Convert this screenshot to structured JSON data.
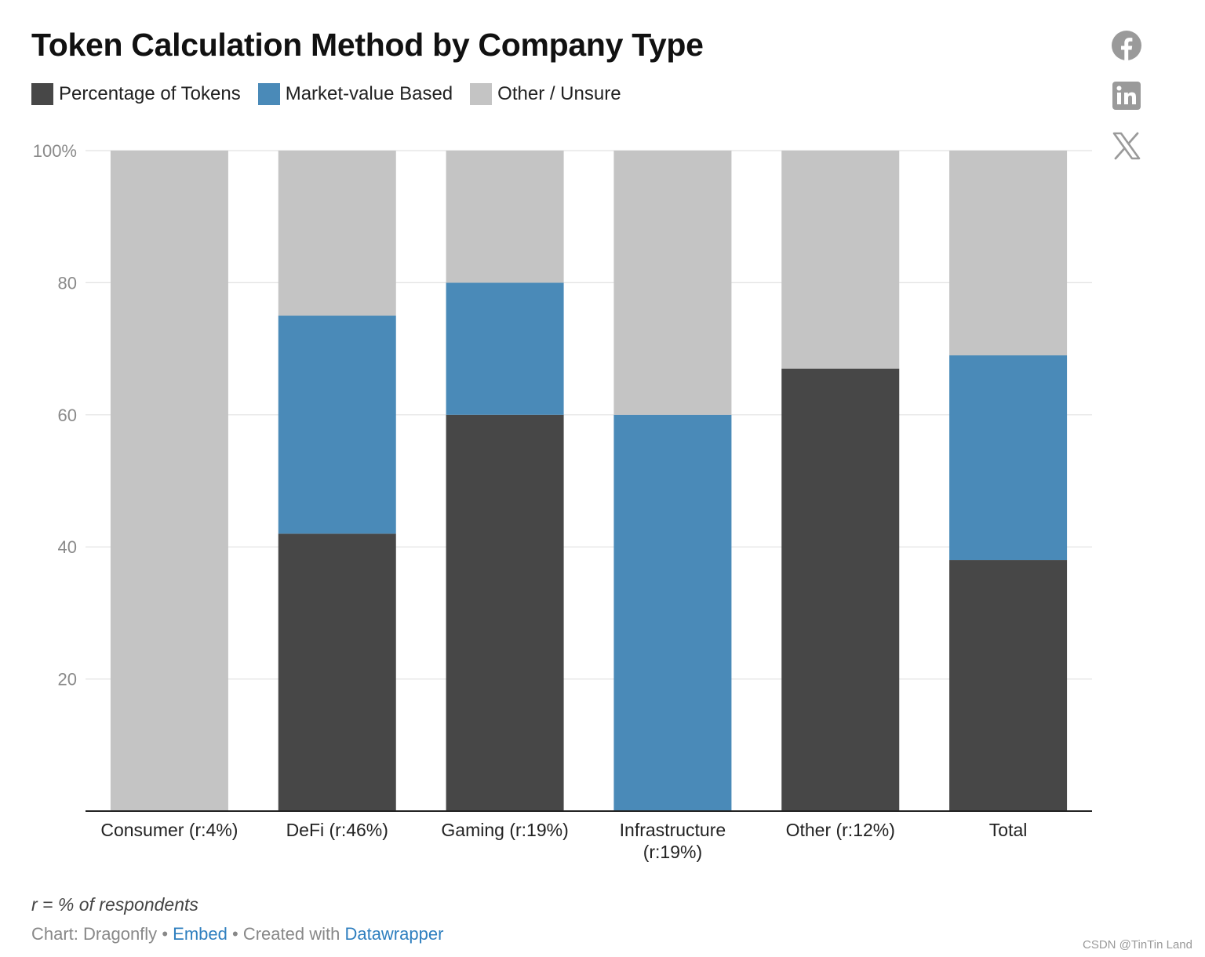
{
  "title": "Token Calculation Method by Company Type",
  "legend": [
    {
      "label": "Percentage of Tokens",
      "color": "#474747"
    },
    {
      "label": "Market-value Based",
      "color": "#4a8ab8"
    },
    {
      "label": "Other / Unsure",
      "color": "#c4c4c4"
    }
  ],
  "share": {
    "icons": [
      "facebook-icon",
      "linkedin-icon",
      "x-icon"
    ]
  },
  "chart_data": {
    "type": "bar",
    "stacked": true,
    "categories": [
      [
        "Consumer (r:4%)"
      ],
      [
        "DeFi (r:46%)"
      ],
      [
        "Gaming (r:19%)"
      ],
      [
        "Infrastructure",
        "(r:19%)"
      ],
      [
        "Other (r:12%)"
      ],
      [
        "Total"
      ]
    ],
    "series": [
      {
        "name": "Percentage of Tokens",
        "color": "#474747",
        "values": [
          0,
          42,
          60,
          0,
          67,
          38
        ]
      },
      {
        "name": "Market-value Based",
        "color": "#4a8ab8",
        "values": [
          0,
          33,
          20,
          60,
          0,
          31
        ]
      },
      {
        "name": "Other / Unsure",
        "color": "#c4c4c4",
        "values": [
          100,
          25,
          20,
          40,
          33,
          31
        ]
      }
    ],
    "ylim": [
      0,
      100
    ],
    "yticks": [
      20,
      40,
      60,
      80,
      100
    ],
    "ytick_labels": [
      "20",
      "40",
      "60",
      "80",
      "100%"
    ],
    "grid": true,
    "legend_position": "top-left"
  },
  "footer": {
    "note": "r = % of respondents",
    "credit_prefix": "Chart: Dragonfly",
    "separator": "•",
    "embed_link": "Embed",
    "created_with": "Created with",
    "datawrapper_link": "Datawrapper"
  },
  "watermark": "CSDN @TinTin Land"
}
